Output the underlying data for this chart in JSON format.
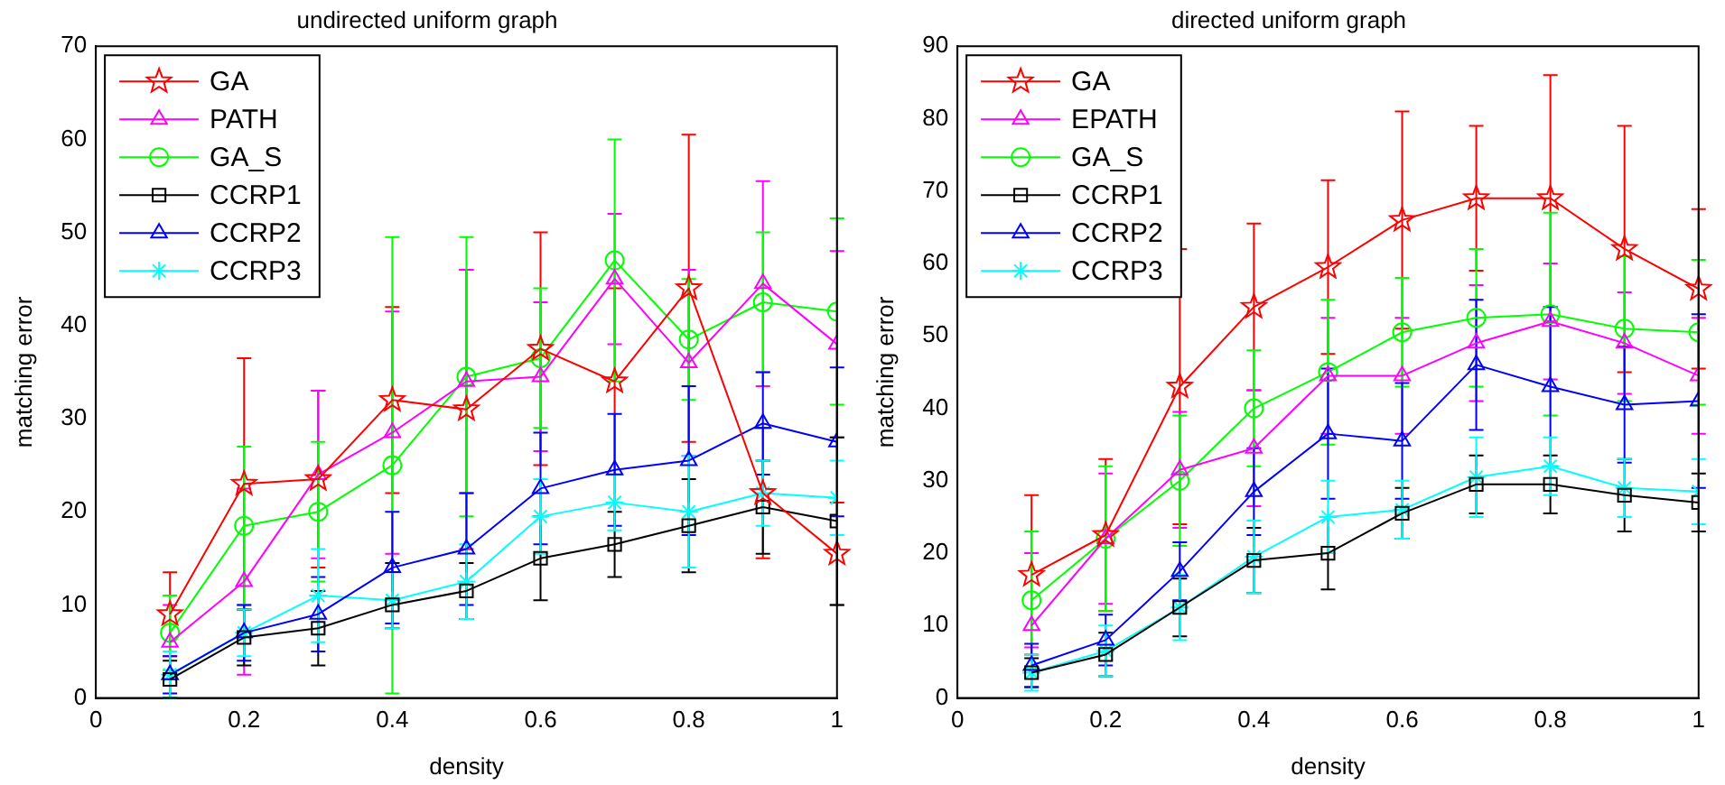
{
  "chart_data": [
    {
      "type": "line",
      "title": "undirected uniform graph",
      "xlabel": "density",
      "ylabel": "matching error",
      "x": [
        0.1,
        0.2,
        0.3,
        0.4,
        0.5,
        0.6,
        0.7,
        0.8,
        0.9,
        1
      ],
      "xlim": [
        0,
        1
      ],
      "xticks": [
        0,
        0.2,
        0.4,
        0.6,
        0.8,
        1
      ],
      "ylim": [
        0,
        70
      ],
      "yticks": [
        0,
        10,
        20,
        30,
        40,
        50,
        60,
        70
      ],
      "grid": false,
      "legend": "top left",
      "series": [
        {
          "name": "GA",
          "color": "#ff0000",
          "marker": "star",
          "values": [
            9,
            23,
            23.5,
            32,
            31,
            37.5,
            34,
            44,
            22,
            15.5
          ],
          "errors": [
            4.5,
            13.5,
            9.5,
            10,
            15,
            12.5,
            10,
            16.5,
            7,
            5.5
          ]
        },
        {
          "name": "PATH",
          "color": "#ff00ff",
          "marker": "triangle",
          "values": [
            6,
            12.5,
            24,
            28.5,
            34,
            34.5,
            45,
            36,
            44.5,
            38
          ],
          "errors": [
            4,
            10,
            9,
            13,
            12,
            8,
            7,
            10,
            11,
            10
          ]
        },
        {
          "name": "GA_S",
          "color": "#00ff00",
          "marker": "circle",
          "values": [
            7,
            18.5,
            20,
            25,
            34.5,
            36.5,
            47,
            38.5,
            42.5,
            41.5
          ],
          "errors": [
            4,
            8.5,
            7.5,
            24.5,
            15,
            7.5,
            13,
            6.5,
            7.5,
            10
          ]
        },
        {
          "name": "CCRP1",
          "color": "#000000",
          "marker": "square",
          "values": [
            2,
            6.5,
            7.5,
            10,
            11.5,
            15,
            16.5,
            18.5,
            20.5,
            19
          ],
          "errors": [
            2,
            3,
            4,
            [
              7.5,
              14.5
            ],
            3,
            4.5,
            3.5,
            5,
            5,
            9
          ]
        },
        {
          "name": "CCRP2",
          "color": "#0000ff",
          "marker": "triangle",
          "values": [
            2.5,
            7,
            9,
            14,
            16,
            22.5,
            24.5,
            25.5,
            29.5,
            27.5
          ],
          "errors": [
            2,
            3,
            4,
            6,
            6,
            6,
            6,
            8,
            5.5,
            8
          ]
        },
        {
          "name": "CCRP3",
          "color": "#00ffff",
          "marker": "cross",
          "values": [
            2.5,
            7,
            11,
            10.5,
            12.5,
            19.5,
            21,
            20,
            22,
            21.5
          ],
          "errors": [
            2.5,
            2.5,
            5,
            3,
            4,
            4,
            3,
            6,
            3.5,
            4
          ]
        }
      ]
    },
    {
      "type": "line",
      "title": "directed uniform graph",
      "xlabel": "density",
      "ylabel": "matching error",
      "x": [
        0.1,
        0.2,
        0.3,
        0.4,
        0.5,
        0.6,
        0.7,
        0.8,
        0.9,
        1
      ],
      "xlim": [
        0,
        1
      ],
      "xticks": [
        0,
        0.2,
        0.4,
        0.6,
        0.8,
        1
      ],
      "ylim": [
        0,
        90
      ],
      "yticks": [
        0,
        10,
        20,
        30,
        40,
        50,
        60,
        70,
        80,
        90
      ],
      "grid": false,
      "legend": "top left",
      "series": [
        {
          "name": "GA",
          "color": "#ff0000",
          "marker": "star",
          "values": [
            17,
            22.5,
            43,
            54,
            59.5,
            66,
            69,
            69,
            62,
            56.5
          ],
          "errors": [
            11,
            10.5,
            19,
            11.5,
            12,
            15,
            10,
            17,
            17,
            11
          ]
        },
        {
          "name": "EPATH",
          "color": "#ff00ff",
          "marker": "triangle",
          "values": [
            10,
            22,
            31.5,
            34.5,
            44.5,
            44.5,
            49,
            52,
            49,
            44.5
          ],
          "errors": [
            [
              7,
              20
            ],
            9,
            8,
            8,
            8,
            8,
            8,
            8,
            7,
            8
          ]
        },
        {
          "name": "GA_S",
          "color": "#00ff00",
          "marker": "circle",
          "values": [
            13.5,
            22,
            30,
            40,
            45,
            50.5,
            52.5,
            53,
            51,
            50.5
          ],
          "errors": [
            9.5,
            10,
            9,
            8,
            10,
            7.5,
            9.5,
            14,
            10,
            10
          ]
        },
        {
          "name": "CCRP1",
          "color": "#000000",
          "marker": "square",
          "values": [
            3.5,
            6,
            12.5,
            19,
            20,
            25.5,
            29.5,
            29.5,
            28,
            27
          ],
          "errors": [
            2,
            3,
            4,
            4.5,
            5,
            3.5,
            4,
            4,
            5,
            4
          ]
        },
        {
          "name": "CCRP2",
          "color": "#0000ff",
          "marker": "triangle",
          "values": [
            4.5,
            8,
            17.5,
            28.5,
            36.5,
            35.5,
            46,
            43,
            40.5,
            41
          ],
          "errors": [
            3,
            3.5,
            4,
            6,
            9,
            8,
            9,
            11,
            8,
            12
          ]
        },
        {
          "name": "CCRP3",
          "color": "#00ffff",
          "marker": "cross",
          "values": [
            3.5,
            6.5,
            12.5,
            19.5,
            25,
            26,
            30.5,
            32,
            29,
            28.5
          ],
          "errors": [
            2.5,
            3.5,
            4.5,
            5,
            5,
            4,
            5.5,
            4,
            4,
            4.5
          ]
        }
      ]
    }
  ]
}
